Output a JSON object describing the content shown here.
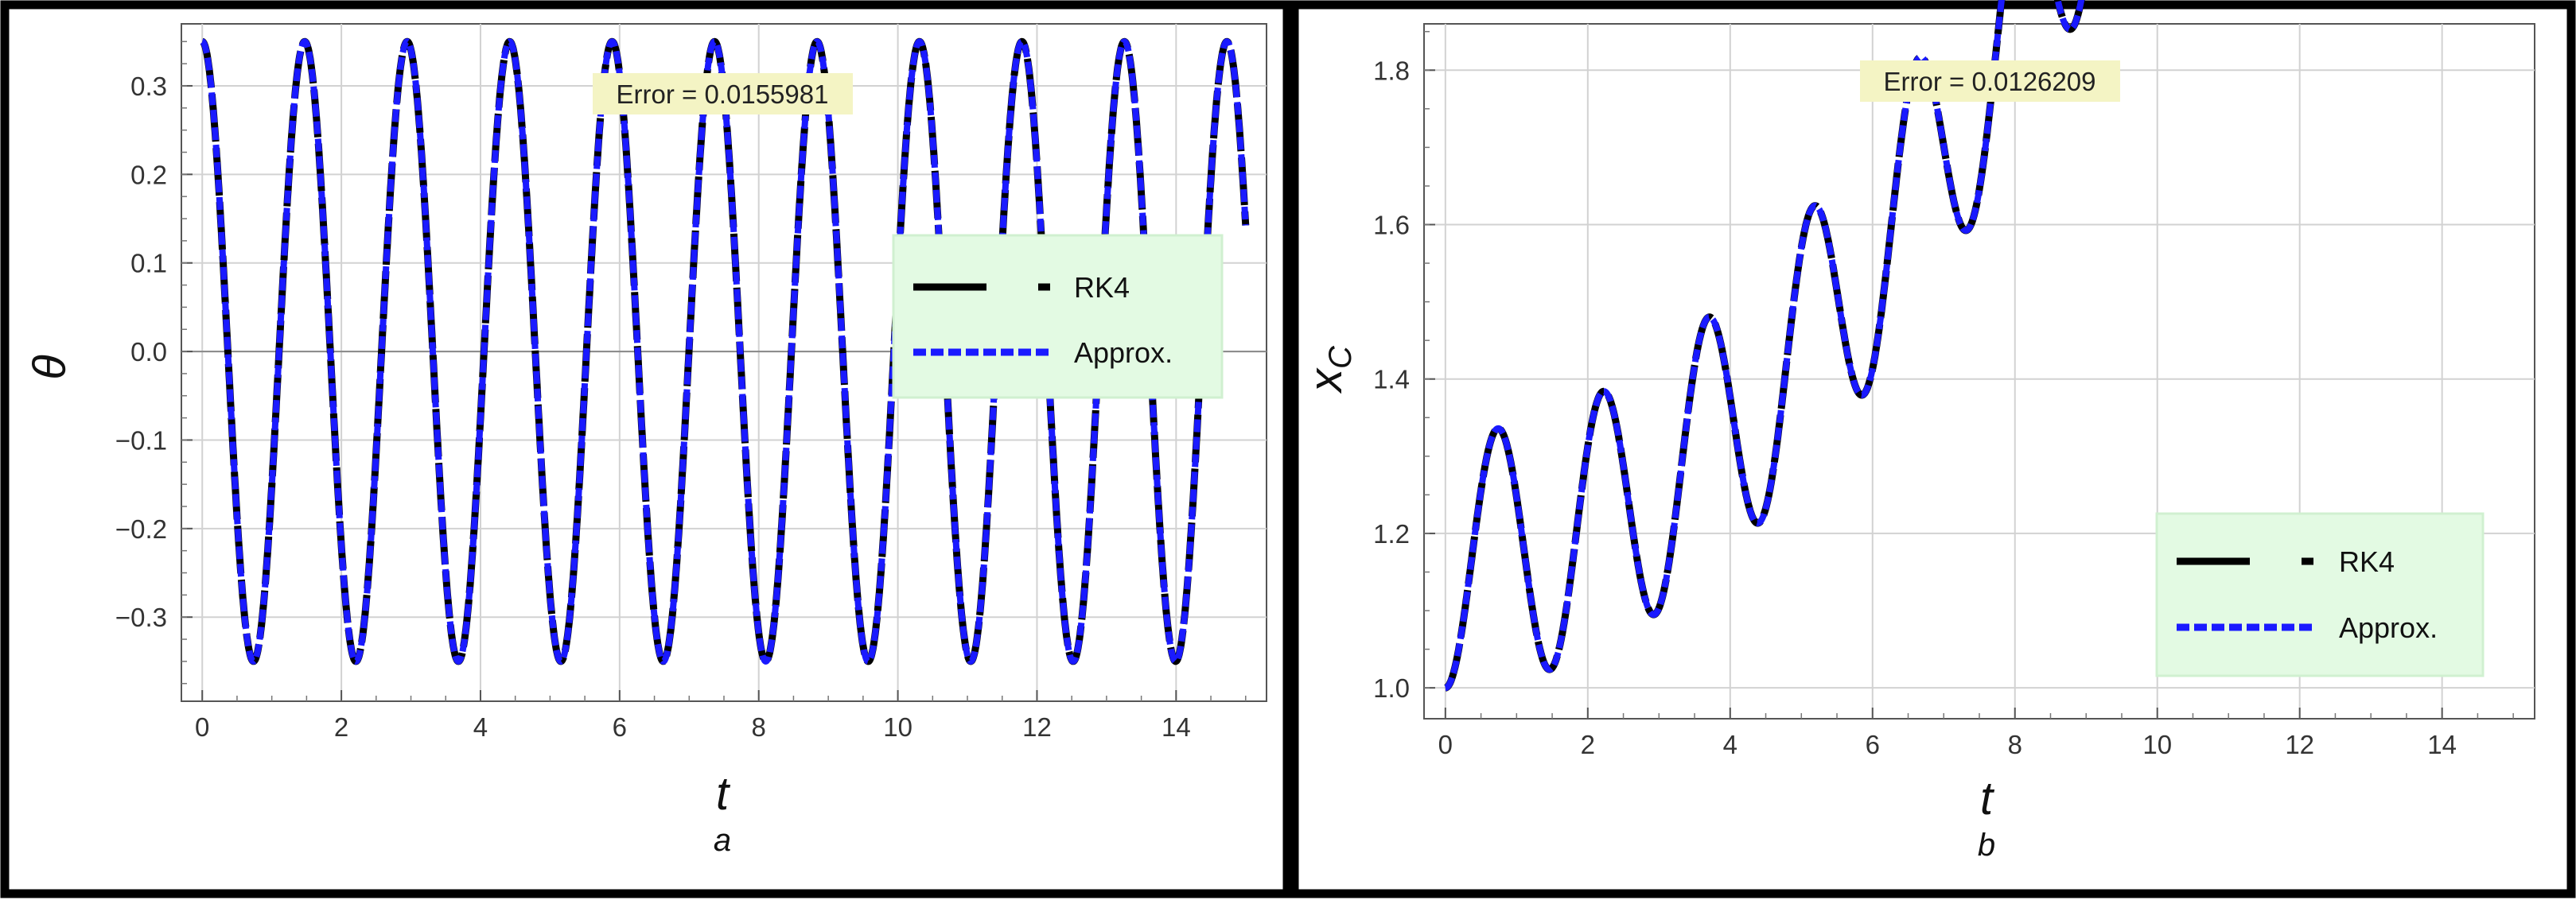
{
  "chart_data": [
    {
      "type": "line",
      "panel": "a",
      "caption": "a",
      "xlabel": "t",
      "ylabel": "θ",
      "xlim": [
        -0.3,
        15.3
      ],
      "ylim": [
        -0.395,
        0.37
      ],
      "xticks": [
        0,
        2,
        4,
        6,
        8,
        10,
        12,
        14
      ],
      "yticks": [
        -0.3,
        -0.2,
        -0.1,
        0.0,
        0.1,
        0.2,
        0.3
      ],
      "ytick_labels": [
        "−0.3",
        "−0.2",
        "−0.1",
        "0.0",
        "0.1",
        "0.2",
        "0.3"
      ],
      "grid": true,
      "zero_line": true,
      "annotation": "Error = 0.0155981",
      "legend": {
        "placement": "right",
        "entries": [
          "RK4",
          "Approx."
        ]
      },
      "series": [
        {
          "name": "RK4",
          "color": "#000000",
          "style": "long-dash",
          "function": {
            "kind": "cos",
            "amplitude": 0.35,
            "period": 1.473,
            "phase": 0.0,
            "offset": 0.0,
            "trend": 0.0,
            "t_start": 0,
            "t_end": 15
          }
        },
        {
          "name": "Approx.",
          "color": "#1a1aff",
          "style": "short-dash",
          "function": {
            "kind": "cos",
            "amplitude": 0.35,
            "period": 1.473,
            "phase": 0.0,
            "offset": 0.0,
            "trend": 0.0,
            "t_start": 0,
            "t_end": 15
          }
        }
      ]
    },
    {
      "type": "line",
      "panel": "b",
      "caption": "b",
      "xlabel": "t",
      "ylabel": "x",
      "ylabel_subscript": "C",
      "xlim": [
        -0.3,
        15.3
      ],
      "ylim": [
        0.96,
        1.86
      ],
      "xticks": [
        0,
        2,
        4,
        6,
        8,
        10,
        12,
        14
      ],
      "yticks": [
        1.0,
        1.2,
        1.4,
        1.6,
        1.8
      ],
      "ytick_labels": [
        "1.0",
        "1.2",
        "1.4",
        "1.6",
        "1.8"
      ],
      "grid": true,
      "zero_line": false,
      "annotation": "Error = 0.0126209",
      "legend": {
        "placement": "bottom-right",
        "entries": [
          "RK4",
          "Approx."
        ]
      },
      "series": [
        {
          "name": "RK4",
          "color": "#000000",
          "style": "long-dash",
          "function": {
            "kind": "one-minus-cos",
            "amplitude": 0.165,
            "period": 1.473,
            "phase": 0.0,
            "offset": 1.0,
            "trend": 0.011,
            "t_start": 0,
            "t_end": 15
          }
        },
        {
          "name": "Approx.",
          "color": "#1a1aff",
          "style": "short-dash",
          "function": {
            "kind": "one-minus-cos",
            "amplitude": 0.165,
            "period": 1.473,
            "phase": 0.0,
            "offset": 1.0,
            "trend": 0.011,
            "t_start": 0,
            "t_end": 15
          }
        }
      ]
    }
  ]
}
